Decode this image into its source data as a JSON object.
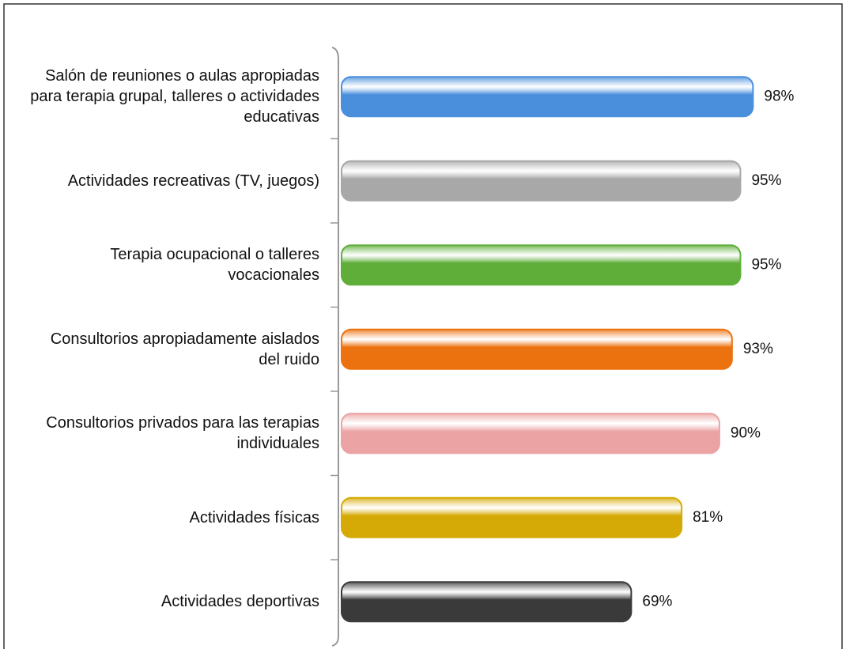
{
  "chart_data": {
    "type": "bar",
    "orientation": "horizontal",
    "categories": [
      "Salón de reuniones o aulas apropiadas para terapia grupal, talleres o actividades educativas",
      "Actividades recreativas (TV, juegos)",
      "Terapia ocupacional o talleres vocacionales",
      "Consultorios apropiadamente aislados del ruido",
      "Consultorios privados para las terapias individuales",
      "Actividades físicas",
      "Actividades deportivas"
    ],
    "values": [
      98,
      95,
      95,
      93,
      90,
      81,
      69
    ],
    "value_labels": [
      "98%",
      "95%",
      "95%",
      "93%",
      "90%",
      "81%",
      "69%"
    ],
    "colors": [
      "#4a8fdc",
      "#a8a8a8",
      "#5fae3a",
      "#ec720f",
      "#eba3a3",
      "#d6aa06",
      "#3a3a3a"
    ],
    "xlim": [
      0,
      100
    ]
  }
}
